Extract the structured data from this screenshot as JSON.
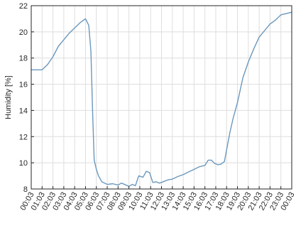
{
  "chart_data": {
    "type": "line",
    "title": "",
    "xlabel": "",
    "ylabel": "Humidity [%]",
    "ylim": [
      8,
      22
    ],
    "yticks": [
      8,
      10,
      12,
      14,
      16,
      18,
      20,
      22
    ],
    "xtick_labels": [
      "00:03",
      "01:03",
      "02:03",
      "03:03",
      "04:03",
      "05:03",
      "06:03",
      "07:03",
      "08:03",
      "09:03",
      "10:03",
      "11:03",
      "12:03",
      "13:03",
      "14:03",
      "15:03",
      "16:03",
      "17:03",
      "18:03",
      "19:03",
      "20:03",
      "21:03",
      "22:03",
      "23:03",
      "00:03"
    ],
    "grid": true,
    "line_color": "#6b98bd",
    "series": [
      {
        "x": [
          0,
          0.5,
          1.0,
          1.5,
          2.0,
          2.5,
          3.0,
          3.5,
          4.0,
          4.5,
          5.0,
          5.3,
          5.5,
          5.65,
          5.8,
          6.0,
          6.2,
          6.5,
          7.0,
          7.5,
          8.0,
          8.3,
          8.6,
          9.0,
          9.3,
          9.6,
          9.9,
          10.3,
          10.6,
          10.9,
          11.2,
          11.5,
          11.8,
          12.0,
          12.3,
          12.6,
          13.0,
          13.5,
          14.0,
          14.5,
          15.0,
          15.5,
          16.0,
          16.3,
          16.6,
          16.9,
          17.2,
          17.5,
          17.8,
          18.0,
          18.3,
          18.6,
          19.0,
          19.5,
          20.0,
          20.5,
          21.0,
          21.5,
          22.0,
          22.5,
          23.0,
          23.5,
          24.0
        ],
        "y": [
          17.1,
          17.1,
          17.1,
          17.5,
          18.1,
          18.9,
          19.4,
          19.9,
          20.3,
          20.7,
          21.0,
          20.5,
          18.5,
          14.0,
          10.2,
          9.5,
          9.0,
          8.55,
          8.35,
          8.4,
          8.3,
          8.45,
          8.35,
          8.2,
          8.35,
          8.25,
          9.0,
          8.9,
          9.35,
          9.25,
          8.5,
          8.55,
          8.45,
          8.5,
          8.6,
          8.7,
          8.75,
          8.95,
          9.1,
          9.3,
          9.5,
          9.7,
          9.8,
          10.2,
          10.2,
          9.95,
          9.85,
          9.9,
          10.1,
          11.0,
          12.3,
          13.4,
          14.6,
          16.5,
          17.7,
          18.7,
          19.6,
          20.1,
          20.6,
          20.9,
          21.3,
          21.4,
          21.5
        ]
      }
    ]
  }
}
